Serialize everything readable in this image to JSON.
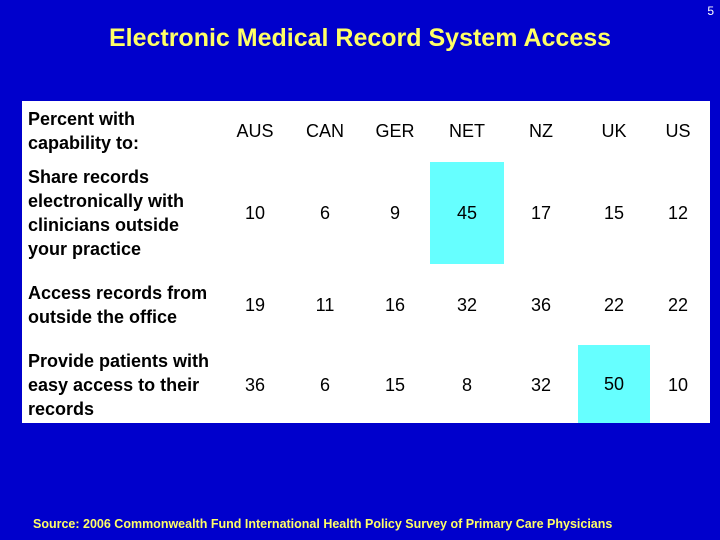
{
  "page_number": "5",
  "title": "Electronic Medical Record System Access",
  "table": {
    "corner_label": "Percent with capability to:",
    "columns": [
      "AUS",
      "CAN",
      "GER",
      "NET",
      "NZ",
      "UK",
      "US"
    ],
    "rows": [
      {
        "label": "Share records electronically with clinicians outside your practice",
        "values": [
          "10",
          "6",
          "9",
          "45",
          "17",
          "15",
          "12"
        ],
        "highlight_col": 3
      },
      {
        "label": "Access records from outside the office",
        "values": [
          "19",
          "11",
          "16",
          "32",
          "36",
          "22",
          "22"
        ],
        "highlight_col": -1
      },
      {
        "label": "Provide patients with easy access to their records",
        "values": [
          "36",
          "6",
          "15",
          "8",
          "32",
          "50",
          "10"
        ],
        "highlight_col": 5
      }
    ],
    "highlight_color": "#66ffff"
  },
  "source": "Source: 2006 Commonwealth Fund International Health Policy Survey of Primary Care Physicians"
}
